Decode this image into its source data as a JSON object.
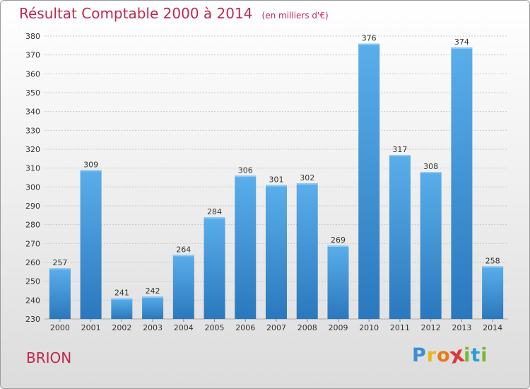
{
  "header": {
    "title": "Résultat Comptable 2000 à 2014",
    "subtitle": "(en milliers d'€)"
  },
  "footer": {
    "place": "BRION",
    "logo_letters": [
      "P",
      "r",
      "o",
      "x",
      "i",
      "t",
      "i"
    ],
    "logo_colors": [
      "#3a8fd6",
      "#e8b81c",
      "#ea7a16",
      "#d83a3a",
      "#7cb532",
      "#2e9bd6",
      "#7cb532"
    ]
  },
  "chart_data": {
    "type": "bar",
    "categories": [
      "2000",
      "2001",
      "2002",
      "2003",
      "2004",
      "2005",
      "2006",
      "2007",
      "2008",
      "2009",
      "2010",
      "2011",
      "2012",
      "2013",
      "2014"
    ],
    "values": [
      257,
      309,
      241,
      242,
      264,
      284,
      306,
      301,
      302,
      269,
      376,
      317,
      308,
      374,
      258
    ],
    "ylim": [
      230,
      380
    ],
    "yticks": [
      230,
      240,
      250,
      260,
      270,
      280,
      290,
      300,
      310,
      320,
      330,
      340,
      350,
      360,
      370,
      380
    ],
    "grid": true,
    "bar_color": "#4a9de0",
    "bar_color_dark": "#2a78bd"
  }
}
